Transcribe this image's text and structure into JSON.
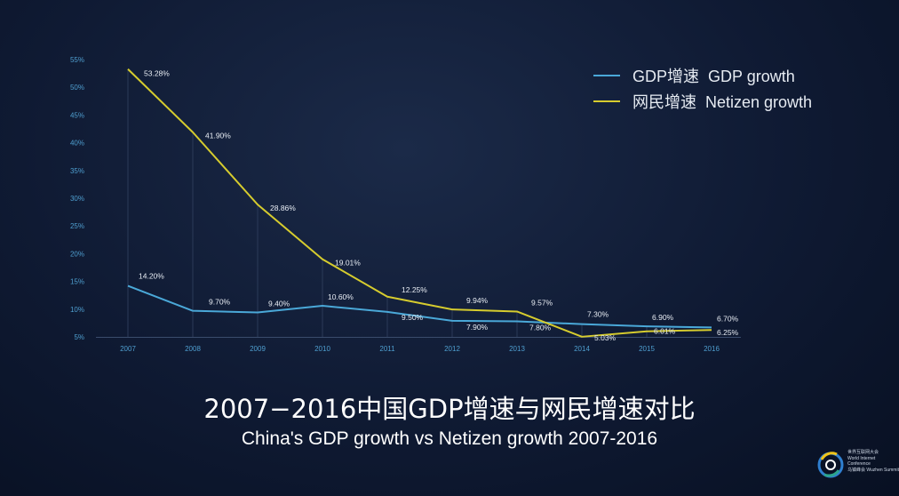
{
  "chart_data": {
    "type": "line",
    "categories": [
      "2007",
      "2008",
      "2009",
      "2010",
      "2011",
      "2012",
      "2013",
      "2014",
      "2015",
      "2016"
    ],
    "series": [
      {
        "name": "GDP增速  GDP growth",
        "color": "#4aa8d8",
        "values": [
          14.2,
          9.7,
          9.4,
          10.6,
          9.5,
          7.9,
          7.8,
          7.3,
          6.9,
          6.7
        ],
        "labels": [
          "14.20%",
          "9.70%",
          "9.40%",
          "10.60%",
          "9.50%",
          "7.90%",
          "7.80%",
          "7.30%",
          "6.90%",
          "6.70%"
        ]
      },
      {
        "name": "网民增速  Netizen growth",
        "color": "#d6cc2e",
        "values": [
          53.28,
          41.9,
          28.86,
          19.01,
          12.25,
          9.94,
          9.57,
          5.03,
          6.01,
          6.25
        ],
        "labels": [
          "53.28%",
          "41.90%",
          "28.86%",
          "19.01%",
          "12.25%",
          "9.94%",
          "9.57%",
          "5.03%",
          "6.01%",
          "6.25%"
        ]
      }
    ],
    "yticks": [
      "5%",
      "10%",
      "15%",
      "20%",
      "25%",
      "30%",
      "35%",
      "40%",
      "45%",
      "50%",
      "55%"
    ],
    "ylim": [
      5,
      55
    ],
    "xlabel": "",
    "ylabel": "",
    "grid": false,
    "legend_position": "top-right"
  },
  "title": {
    "cn": "2007−2016中国GDP增速与网民增速对比",
    "en": "China's GDP growth vs Netizen growth 2007-2016"
  },
  "logo": {
    "line1": "世界互联网大会",
    "line2": "World Internet",
    "line3": "Conference",
    "line4": "乌镇峰会 Wuzhen Summit"
  }
}
